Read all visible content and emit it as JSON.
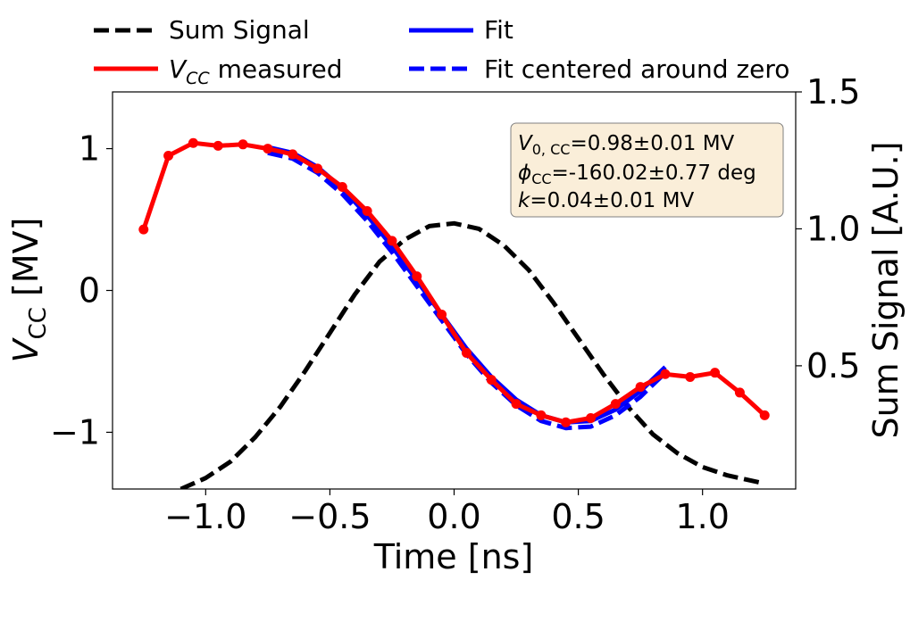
{
  "chart_data": {
    "type": "line",
    "xlabel": "Time [ns]",
    "ylabel_left": "V_CC [MV]",
    "ylabel_right": "Sum Signal [A.U.]",
    "xlim": [
      -1.375,
      1.375
    ],
    "ylim_left": [
      -1.4,
      1.4
    ],
    "ylim_right": [
      0.05,
      1.5
    ],
    "xticks": [
      -1.0,
      -0.5,
      0.0,
      0.5,
      1.0
    ],
    "xtick_labels": [
      "−1.0",
      "−0.5",
      "0.0",
      "0.5",
      "1.0"
    ],
    "yticks_left": [
      -1,
      0,
      1
    ],
    "ytick_labels_left": [
      "−1",
      "0",
      "1"
    ],
    "yticks_right": [
      0.5,
      1.0,
      1.5
    ],
    "ytick_labels_right": [
      "0.5",
      "1.0",
      "1.5"
    ],
    "grid": false,
    "legend_placement": "top, above axes, two columns",
    "legend": [
      {
        "label": "Sum Signal",
        "style": "dashed",
        "color": "#000000"
      },
      {
        "label_main": "V",
        "label_sub": "CC",
        "label_rest": " measured",
        "style": "solid-markers",
        "color": "#ff0000"
      },
      {
        "label": "Fit",
        "style": "solid",
        "color": "#0000ff"
      },
      {
        "label": "Fit centered around zero",
        "style": "dashed",
        "color": "#0000ff"
      }
    ],
    "annotation": {
      "line1": {
        "main": "V",
        "sub": "0, CC",
        "rest": "=0.98±0.01 MV"
      },
      "line2": {
        "main": "ϕ",
        "sub": "CC",
        "rest": "=-160.02±0.77 deg"
      },
      "line3": {
        "main": "k",
        "rest": "=0.04±0.01 MV"
      }
    },
    "series": [
      {
        "name": "Sum Signal",
        "axis": "right",
        "color": "#000000",
        "style": "dashed",
        "x": [
          -1.1,
          -1.0,
          -0.9,
          -0.8,
          -0.7,
          -0.6,
          -0.5,
          -0.4,
          -0.3,
          -0.2,
          -0.1,
          0.0,
          0.1,
          0.2,
          0.3,
          0.4,
          0.5,
          0.6,
          0.7,
          0.8,
          0.9,
          1.0,
          1.1,
          1.25
        ],
        "y": [
          0.05,
          0.09,
          0.15,
          0.24,
          0.35,
          0.48,
          0.62,
          0.76,
          0.88,
          0.96,
          1.01,
          1.02,
          1.0,
          0.94,
          0.85,
          0.73,
          0.6,
          0.47,
          0.35,
          0.25,
          0.18,
          0.13,
          0.1,
          0.07
        ]
      },
      {
        "name": "V_CC measured",
        "axis": "left",
        "color": "#ff0000",
        "style": "solid-markers",
        "x": [
          -1.25,
          -1.15,
          -1.05,
          -0.95,
          -0.85,
          -0.75,
          -0.65,
          -0.55,
          -0.45,
          -0.35,
          -0.25,
          -0.15,
          -0.05,
          0.05,
          0.15,
          0.25,
          0.35,
          0.45,
          0.55,
          0.65,
          0.75,
          0.85,
          0.95,
          1.05,
          1.15,
          1.25
        ],
        "y": [
          0.43,
          0.95,
          1.04,
          1.02,
          1.03,
          1.0,
          0.96,
          0.86,
          0.73,
          0.56,
          0.35,
          0.1,
          -0.17,
          -0.44,
          -0.63,
          -0.8,
          -0.88,
          -0.93,
          -0.9,
          -0.8,
          -0.68,
          -0.59,
          -0.61,
          -0.58,
          -0.72,
          -0.88
        ]
      },
      {
        "name": "Fit",
        "axis": "left",
        "color": "#0000ff",
        "style": "solid",
        "x": [
          -0.75,
          -0.65,
          -0.55,
          -0.45,
          -0.35,
          -0.25,
          -0.15,
          -0.05,
          0.05,
          0.15,
          0.25,
          0.35,
          0.45,
          0.55,
          0.65,
          0.75,
          0.85
        ],
        "y": [
          1.01,
          0.97,
          0.87,
          0.72,
          0.53,
          0.31,
          0.07,
          -0.17,
          -0.41,
          -0.61,
          -0.77,
          -0.88,
          -0.93,
          -0.92,
          -0.84,
          -0.71,
          -0.54
        ]
      },
      {
        "name": "Fit centered around zero",
        "axis": "left",
        "color": "#0000ff",
        "style": "dashed",
        "x": [
          -0.75,
          -0.65,
          -0.55,
          -0.45,
          -0.35,
          -0.25,
          -0.15,
          -0.05,
          0.05,
          0.15,
          0.25,
          0.35,
          0.45,
          0.55,
          0.65,
          0.75,
          0.85
        ],
        "y": [
          0.97,
          0.93,
          0.83,
          0.68,
          0.49,
          0.27,
          0.03,
          -0.21,
          -0.45,
          -0.65,
          -0.81,
          -0.92,
          -0.97,
          -0.96,
          -0.88,
          -0.75,
          -0.58
        ]
      }
    ]
  }
}
